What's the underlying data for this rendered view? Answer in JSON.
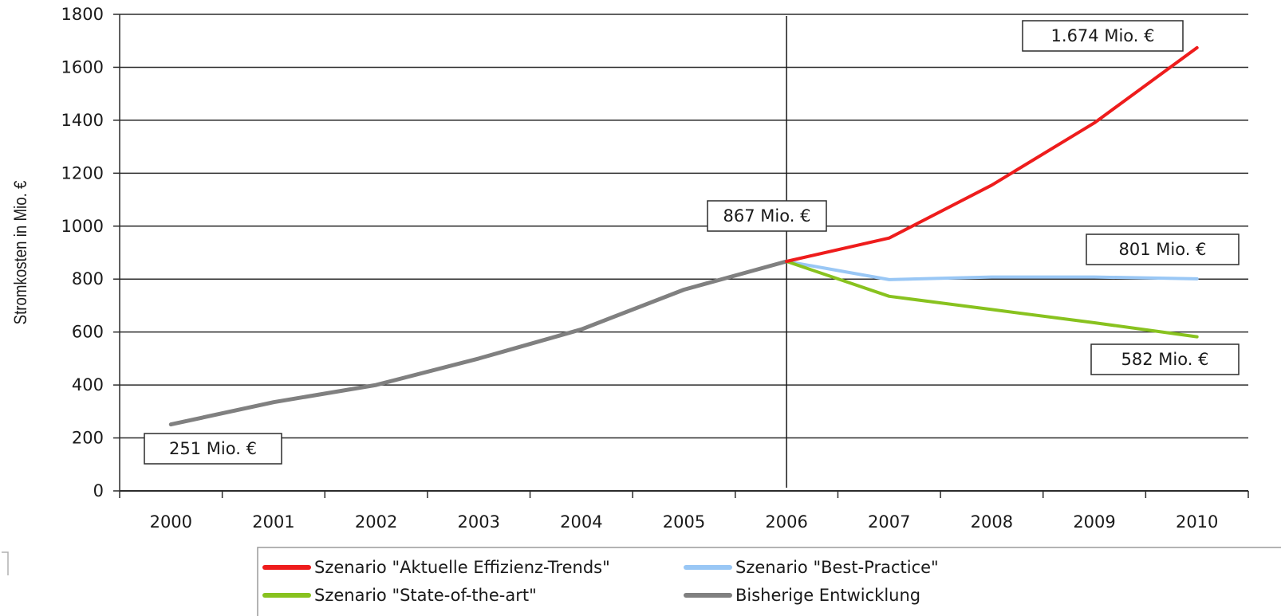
{
  "chart_data": {
    "type": "line",
    "title": "",
    "xlabel": "",
    "ylabel": "Stromkosten in Mio. €",
    "categories": [
      "2000",
      "2001",
      "2002",
      "2003",
      "2004",
      "2005",
      "2006",
      "2007",
      "2008",
      "2009",
      "2010"
    ],
    "ylim": [
      0,
      1800
    ],
    "yticks": [
      "0",
      "200",
      "400",
      "600",
      "800",
      "1000",
      "1200",
      "1400",
      "1600",
      "1800"
    ],
    "grid": "horizontal",
    "legend_position": "bottom",
    "series": [
      {
        "name": "Szenario \"Aktuelle Effizienz-Trends\"",
        "color": "#ee1c1c",
        "x": [
          "2006",
          "2007",
          "2008",
          "2009",
          "2010"
        ],
        "values": [
          867,
          955,
          1155,
          1390,
          1674
        ]
      },
      {
        "name": "Szenario \"Best-Practice\"",
        "color": "#99c7f5",
        "x": [
          "2006",
          "2007",
          "2008",
          "2009",
          "2010"
        ],
        "values": [
          867,
          798,
          808,
          808,
          801
        ]
      },
      {
        "name": "Szenario \"State-of-the-art\"",
        "color": "#88c21f",
        "x": [
          "2006",
          "2007",
          "2008",
          "2009",
          "2010"
        ],
        "values": [
          867,
          735,
          685,
          635,
          582
        ]
      },
      {
        "name": "Bisherige Entwicklung",
        "color": "#808080",
        "x": [
          "2000",
          "2001",
          "2002",
          "2003",
          "2004",
          "2005",
          "2006"
        ],
        "values": [
          251,
          335,
          400,
          500,
          610,
          760,
          867
        ]
      }
    ],
    "reference_line_x": "2006",
    "annotations": [
      {
        "text": "1.674 Mio. €",
        "x": "2010",
        "y": 1674
      },
      {
        "text": "867 Mio. €",
        "x": "2006",
        "y": 867
      },
      {
        "text": "801 Mio. €",
        "x": "2010",
        "y": 801
      },
      {
        "text": "582 Mio. €",
        "x": "2010",
        "y": 582
      },
      {
        "text": "251 Mio. €",
        "x": "2000",
        "y": 251
      }
    ]
  }
}
